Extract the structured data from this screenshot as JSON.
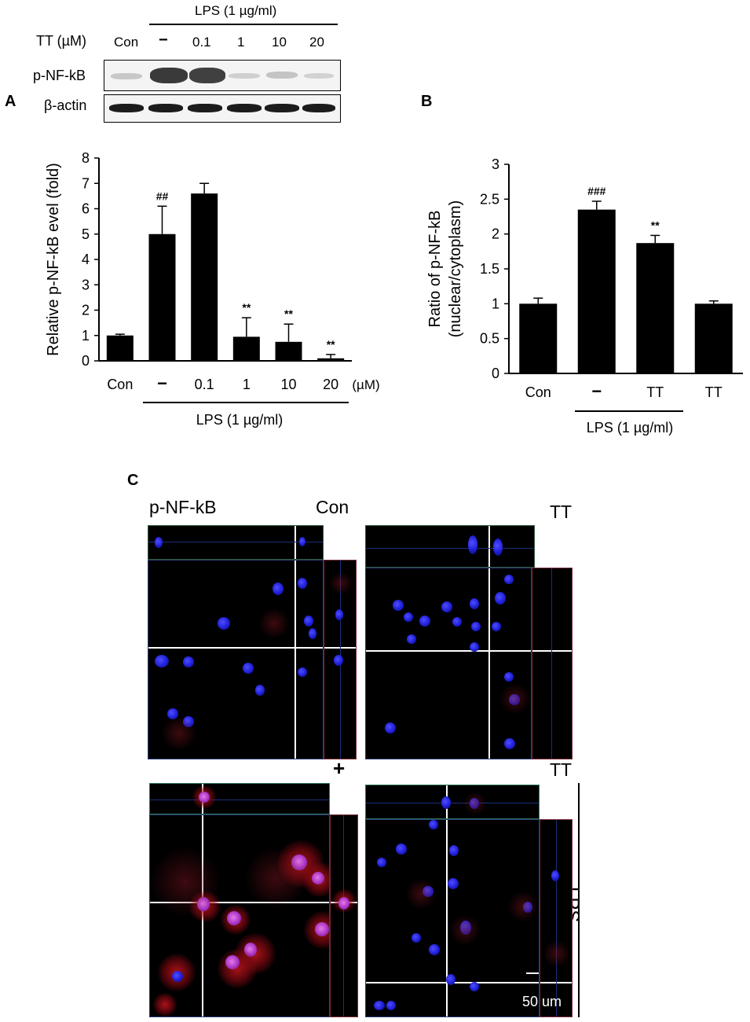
{
  "panel_labels": {
    "a": "A",
    "b": "B",
    "c": "C"
  },
  "western_blot": {
    "lps_label": "LPS (1 µg/ml)",
    "tt_label": "TT (µM)",
    "lanes": [
      "Con",
      "−",
      "0.1",
      "1",
      "10",
      "20"
    ],
    "rows": [
      "p-NF-kB",
      "β-actin"
    ]
  },
  "chart_data": [
    {
      "type": "bar",
      "panel": "A",
      "categories": [
        "Con",
        "−",
        "0.1",
        "1",
        "10",
        "20"
      ],
      "values": [
        1.0,
        5.0,
        6.6,
        0.95,
        0.75,
        0.1
      ],
      "errors": [
        0.05,
        1.1,
        0.4,
        0.75,
        0.7,
        0.15
      ],
      "annotations": [
        "",
        "##",
        "",
        "**",
        "**",
        "**"
      ],
      "ylabel": "Relative p-NF-kB evel (fold)",
      "ylim": [
        0,
        8
      ],
      "yticks": [
        "0",
        "1",
        "2",
        "3",
        "4",
        "5",
        "6",
        "7",
        "8"
      ],
      "unit_label": "(µM)",
      "group_label": "LPS (1 µg/ml)",
      "bar_color": "#000000"
    },
    {
      "type": "bar",
      "panel": "B",
      "categories": [
        "Con",
        "−",
        "TT",
        "TT"
      ],
      "values": [
        1.0,
        2.35,
        1.87,
        1.0
      ],
      "errors": [
        0.08,
        0.12,
        0.11,
        0.04
      ],
      "annotations": [
        "",
        "###",
        "**",
        ""
      ],
      "ylabel_line1": "Ratio of p-NF-kB",
      "ylabel_line2": "(nuclear/cytoplasm)",
      "ylim": [
        0,
        3
      ],
      "yticks": [
        "0",
        "0.5",
        "1",
        "1.5",
        "2",
        "2.5",
        "3"
      ],
      "group_label": "LPS (1 µg/ml)",
      "bar_color": "#000000"
    }
  ],
  "microscopy": {
    "stain_label": "p-NF-kB",
    "con_label": "Con",
    "tt_label_top": "TT",
    "plus_label": "+",
    "tt_label_bottom": "TT",
    "lps_label": "LPS",
    "scale_bar": "50 um"
  }
}
